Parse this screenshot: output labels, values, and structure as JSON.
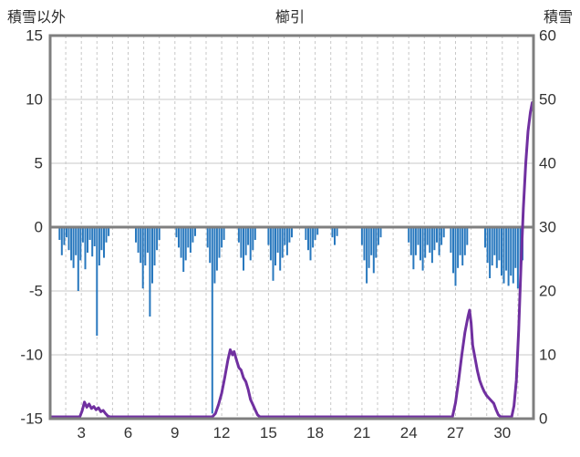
{
  "header": {
    "left_axis_title": "積雪以外",
    "title": "櫛引",
    "right_axis_title": "積雪"
  },
  "colors": {
    "bar": "#2878be",
    "snow_line": "#7030a0",
    "grid": "#c8c8c8",
    "zero_line": "#7f7f7f",
    "border": "#7f7f7f",
    "text": "#333333"
  },
  "x_axis": {
    "xlim": [
      1,
      32
    ],
    "ticks": [
      3,
      6,
      9,
      12,
      15,
      18,
      21,
      24,
      27,
      30
    ],
    "gridline_every_day": true,
    "gridline_style": "dashed"
  },
  "chart_data": [
    {
      "type": "bar",
      "name": "積雪以外",
      "axis": "left",
      "ylim": [
        -15,
        15
      ],
      "yticks": [
        15,
        10,
        5,
        0,
        -5,
        -10,
        -15
      ],
      "points": [
        [
          1.6,
          -1.0
        ],
        [
          1.75,
          -2.2
        ],
        [
          1.9,
          -1.4
        ],
        [
          2.05,
          -0.8
        ],
        [
          2.2,
          -1.8
        ],
        [
          2.35,
          -2.6
        ],
        [
          2.5,
          -3.2
        ],
        [
          2.65,
          -2.2
        ],
        [
          2.8,
          -5.0
        ],
        [
          2.95,
          -2.6
        ],
        [
          3.1,
          -1.2
        ],
        [
          3.25,
          -3.3
        ],
        [
          3.4,
          -2.0
        ],
        [
          3.55,
          -1.0
        ],
        [
          3.7,
          -2.3
        ],
        [
          3.85,
          -1.5
        ],
        [
          4.0,
          -8.5
        ],
        [
          4.15,
          -3.0
        ],
        [
          4.3,
          -1.8
        ],
        [
          4.45,
          -2.4
        ],
        [
          4.6,
          -1.2
        ],
        [
          4.75,
          -0.7
        ],
        [
          6.5,
          -1.2
        ],
        [
          6.65,
          -2.0
        ],
        [
          6.8,
          -2.8
        ],
        [
          6.95,
          -4.8
        ],
        [
          7.1,
          -3.0
        ],
        [
          7.25,
          -2.0
        ],
        [
          7.4,
          -7.0
        ],
        [
          7.55,
          -4.4
        ],
        [
          7.7,
          -3.0
        ],
        [
          7.85,
          -1.8
        ],
        [
          8.0,
          -1.0
        ],
        [
          9.1,
          -0.8
        ],
        [
          9.25,
          -1.6
        ],
        [
          9.4,
          -2.4
        ],
        [
          9.55,
          -3.5
        ],
        [
          9.7,
          -2.6
        ],
        [
          9.85,
          -1.6
        ],
        [
          10.0,
          -2.0
        ],
        [
          10.15,
          -1.2
        ],
        [
          10.3,
          -0.7
        ],
        [
          11.1,
          -1.6
        ],
        [
          11.25,
          -2.8
        ],
        [
          11.4,
          -14.6
        ],
        [
          11.55,
          -4.4
        ],
        [
          11.7,
          -3.4
        ],
        [
          11.85,
          -2.4
        ],
        [
          12.0,
          -1.6
        ],
        [
          12.15,
          -1.0
        ],
        [
          13.1,
          -1.2
        ],
        [
          13.25,
          -2.4
        ],
        [
          13.4,
          -3.4
        ],
        [
          13.55,
          -2.2
        ],
        [
          13.7,
          -1.4
        ],
        [
          13.85,
          -2.6
        ],
        [
          14.0,
          -1.8
        ],
        [
          14.15,
          -1.0
        ],
        [
          15.0,
          -1.4
        ],
        [
          15.15,
          -2.6
        ],
        [
          15.3,
          -4.2
        ],
        [
          15.45,
          -3.0
        ],
        [
          15.6,
          -2.0
        ],
        [
          15.75,
          -3.4
        ],
        [
          15.9,
          -2.4
        ],
        [
          16.05,
          -1.4
        ],
        [
          16.2,
          -2.2
        ],
        [
          16.35,
          -1.2
        ],
        [
          16.5,
          -0.8
        ],
        [
          17.4,
          -1.0
        ],
        [
          17.55,
          -1.8
        ],
        [
          17.7,
          -2.6
        ],
        [
          17.85,
          -1.6
        ],
        [
          18.0,
          -1.0
        ],
        [
          18.15,
          -0.6
        ],
        [
          19.1,
          -0.8
        ],
        [
          19.25,
          -1.4
        ],
        [
          19.4,
          -0.7
        ],
        [
          21.0,
          -1.4
        ],
        [
          21.15,
          -2.6
        ],
        [
          21.3,
          -4.4
        ],
        [
          21.45,
          -3.2
        ],
        [
          21.6,
          -2.2
        ],
        [
          21.75,
          -3.6
        ],
        [
          21.9,
          -2.4
        ],
        [
          22.05,
          -1.4
        ],
        [
          22.2,
          -0.8
        ],
        [
          24.0,
          -1.2
        ],
        [
          24.15,
          -2.2
        ],
        [
          24.3,
          -3.3
        ],
        [
          24.45,
          -2.2
        ],
        [
          24.6,
          -1.4
        ],
        [
          24.75,
          -2.6
        ],
        [
          24.9,
          -3.4
        ],
        [
          25.05,
          -2.4
        ],
        [
          25.2,
          -1.4
        ],
        [
          25.35,
          -2.0
        ],
        [
          25.5,
          -2.8
        ],
        [
          25.65,
          -1.8
        ],
        [
          25.8,
          -1.2
        ],
        [
          25.95,
          -2.2
        ],
        [
          26.1,
          -1.4
        ],
        [
          26.25,
          -0.8
        ],
        [
          26.7,
          -2.0
        ],
        [
          26.85,
          -3.6
        ],
        [
          27.0,
          -4.6
        ],
        [
          27.15,
          -3.2
        ],
        [
          27.3,
          -2.2
        ],
        [
          27.45,
          -3.0
        ],
        [
          27.6,
          -2.2
        ],
        [
          27.75,
          -1.4
        ],
        [
          28.9,
          -1.6
        ],
        [
          29.05,
          -2.8
        ],
        [
          29.2,
          -4.0
        ],
        [
          29.35,
          -3.0
        ],
        [
          29.5,
          -2.2
        ],
        [
          29.65,
          -3.2
        ],
        [
          29.8,
          -2.6
        ],
        [
          29.95,
          -3.8
        ],
        [
          30.1,
          -4.4
        ],
        [
          30.25,
          -3.4
        ],
        [
          30.4,
          -4.6
        ],
        [
          30.55,
          -3.8
        ],
        [
          30.7,
          -4.4
        ],
        [
          30.85,
          -3.2
        ],
        [
          31.0,
          -4.8
        ],
        [
          31.15,
          -3.6
        ],
        [
          31.3,
          -2.6
        ]
      ]
    },
    {
      "type": "line",
      "name": "積雪",
      "axis": "right",
      "ylim": [
        0,
        60
      ],
      "yticks": [
        60,
        50,
        40,
        30,
        20,
        10,
        0
      ],
      "points": [
        [
          1.0,
          0
        ],
        [
          2.9,
          0
        ],
        [
          3.05,
          1.2
        ],
        [
          3.2,
          2.6
        ],
        [
          3.35,
          1.8
        ],
        [
          3.5,
          2.3
        ],
        [
          3.65,
          1.6
        ],
        [
          3.8,
          1.9
        ],
        [
          3.95,
          1.4
        ],
        [
          4.1,
          1.7
        ],
        [
          4.25,
          1.1
        ],
        [
          4.4,
          1.3
        ],
        [
          4.55,
          0.8
        ],
        [
          4.7,
          0.4
        ],
        [
          4.85,
          0
        ],
        [
          11.4,
          0
        ],
        [
          11.6,
          0.8
        ],
        [
          11.8,
          2.2
        ],
        [
          12.0,
          4.0
        ],
        [
          12.2,
          6.5
        ],
        [
          12.4,
          9.2
        ],
        [
          12.55,
          10.8
        ],
        [
          12.7,
          10.0
        ],
        [
          12.8,
          10.5
        ],
        [
          12.95,
          9.2
        ],
        [
          13.1,
          8.0
        ],
        [
          13.25,
          7.6
        ],
        [
          13.4,
          6.4
        ],
        [
          13.55,
          5.8
        ],
        [
          13.7,
          4.6
        ],
        [
          13.85,
          3.0
        ],
        [
          14.0,
          2.2
        ],
        [
          14.15,
          1.4
        ],
        [
          14.3,
          0.6
        ],
        [
          14.45,
          0
        ],
        [
          26.8,
          0
        ],
        [
          27.0,
          2.5
        ],
        [
          27.2,
          6.0
        ],
        [
          27.4,
          10.0
        ],
        [
          27.6,
          13.5
        ],
        [
          27.8,
          16.0
        ],
        [
          27.9,
          17.0
        ],
        [
          28.0,
          15.0
        ],
        [
          28.1,
          11.5
        ],
        [
          28.25,
          9.5
        ],
        [
          28.4,
          7.5
        ],
        [
          28.55,
          6.0
        ],
        [
          28.7,
          5.0
        ],
        [
          28.85,
          4.2
        ],
        [
          29.0,
          3.6
        ],
        [
          29.15,
          3.2
        ],
        [
          29.3,
          2.8
        ],
        [
          29.45,
          2.4
        ],
        [
          29.6,
          1.4
        ],
        [
          29.75,
          0.6
        ],
        [
          29.9,
          0
        ],
        [
          30.6,
          0
        ],
        [
          30.75,
          2.0
        ],
        [
          30.9,
          6.0
        ],
        [
          31.05,
          14.0
        ],
        [
          31.2,
          24.0
        ],
        [
          31.35,
          33.0
        ],
        [
          31.5,
          40.0
        ],
        [
          31.65,
          45.0
        ],
        [
          31.8,
          48.0
        ],
        [
          31.92,
          49.5
        ]
      ]
    }
  ]
}
